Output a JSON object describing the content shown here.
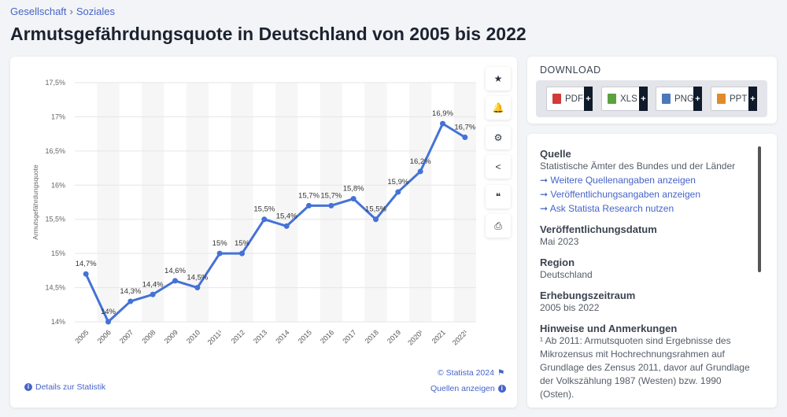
{
  "breadcrumb": {
    "items": [
      "Gesellschaft",
      "Soziales"
    ],
    "separator": "›"
  },
  "title": "Armutsgefährdungsquote in Deutschland von 2005 bis 2022",
  "toolbar": {
    "icons": [
      "star-icon",
      "bell-icon",
      "gear-icon",
      "share-icon",
      "quote-icon",
      "print-icon"
    ],
    "glyphs": [
      "★",
      "🔔",
      "⚙",
      "<",
      "❝",
      "⎙"
    ]
  },
  "footer": {
    "copyright": "© Statista 2024",
    "details": "Details zur Statistik",
    "sources": "Quellen anzeigen"
  },
  "download": {
    "title": "DOWNLOAD",
    "buttons": [
      {
        "label": "PDF",
        "color": "#d23a3a"
      },
      {
        "label": "XLS",
        "color": "#5aa140"
      },
      {
        "label": "PNG",
        "color": "#4a78b8"
      },
      {
        "label": "PPT",
        "color": "#e08a2a"
      }
    ],
    "plus": "+"
  },
  "info": {
    "source_heading": "Quelle",
    "source_text": "Statistische Ämter des Bundes und der Länder",
    "links": [
      "Weitere Quellenangaben anzeigen",
      "Veröffentlichungsangaben anzeigen",
      "Ask Statista Research nutzen"
    ],
    "pubdate_heading": "Veröffentlichungsdatum",
    "pubdate": "Mai 2023",
    "region_heading": "Region",
    "region": "Deutschland",
    "period_heading": "Erhebungszeitraum",
    "period": "2005 bis 2022",
    "notes_heading": "Hinweise und Anmerkungen",
    "notes": "¹ Ab 2011: Armutsquoten sind Ergebnisse des Mikrozensus mit Hochrechnungsrahmen auf Grundlage des Zensus 2011, davor auf Grundlage der Volkszählung 1987 (Westen) bzw. 1990 (Osten)."
  },
  "chart_data": {
    "type": "line",
    "ylabel": "Armutsgefährdungsquote",
    "categories": [
      "2005",
      "2006",
      "2007",
      "2008",
      "2009",
      "2010",
      "2011¹",
      "2012",
      "2013",
      "2014",
      "2015",
      "2016",
      "2017",
      "2018",
      "2019",
      "2020¹",
      "2021",
      "2022¹"
    ],
    "values": [
      14.7,
      14.0,
      14.3,
      14.4,
      14.6,
      14.5,
      15.0,
      15.0,
      15.5,
      15.4,
      15.7,
      15.7,
      15.8,
      15.5,
      15.9,
      16.2,
      16.9,
      16.7
    ],
    "data_labels": [
      "14,7%",
      "14%",
      "14,3%",
      "14,4%",
      "14,6%",
      "14,5%",
      "15%",
      "15%",
      "15,5%",
      "15,4%",
      "15,7%",
      "15,7%",
      "15,8%",
      "15,5%",
      "15,9%",
      "16,2%",
      "16,9%",
      "16,7%"
    ],
    "yticks": [
      14,
      14.5,
      15,
      15.5,
      16,
      16.5,
      17,
      17.5
    ],
    "ytick_labels": [
      "14%",
      "14,5%",
      "15%",
      "15,5%",
      "16%",
      "16,5%",
      "17%",
      "17,5%"
    ],
    "ylim": [
      14,
      17.5
    ],
    "grid": true,
    "line_color": "#4472d6"
  }
}
